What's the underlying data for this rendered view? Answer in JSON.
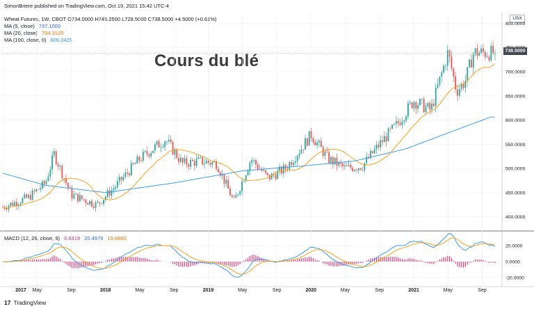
{
  "header": {
    "publish_line": "SimonBriere published on TradingView.com, Oct 19, 2021 15:42 UTC-4",
    "symbol_line": "Wheat Futures, 1W, CBOT  O734.0000  H745.2500  L728.5000  C738.5000  +4.5000 (+0.61%)",
    "currency_badge": "USX"
  },
  "moving_averages": [
    {
      "label": "MA (5, close)",
      "value": "737.1000",
      "color": "#2962ff"
    },
    {
      "label": "MA (20, close)",
      "value": "704.3125",
      "color": "#ff6d00"
    },
    {
      "label": "MA (100, close, 0)",
      "value": "606.2425",
      "color": "#2196f3"
    }
  ],
  "overlay_title": "Cours du blé",
  "last_price_label": "738.5000",
  "macd": {
    "label": "MACD (12, 26, close, 9)",
    "values": [
      {
        "text": "0.6319",
        "color": "#e91e63"
      },
      {
        "text": "20.4979",
        "color": "#2962ff"
      },
      {
        "text": "19.8660",
        "color": "#ff6d00"
      }
    ]
  },
  "footer": {
    "brand_mark": "17",
    "brand_name": "TradingView"
  },
  "colors": {
    "up_candle": "#26a69a",
    "down_candle": "#ef5350",
    "ma100": "#2196f3",
    "ma20": "#ff9800",
    "macd_line": "#2196f3",
    "signal_line": "#ff9800",
    "histogram": "#e91e63",
    "grid": "#eceff1"
  },
  "chart_data": [
    {
      "type": "candlestick",
      "title": "Wheat Futures, 1W, CBOT",
      "x_ticks": [
        "2017",
        "May",
        "Sep",
        "2018",
        "May",
        "Sep",
        "2019",
        "May",
        "Sep",
        "2020",
        "May",
        "Sep",
        "2021",
        "May",
        "Sep"
      ],
      "y_ticks": [
        "400.0000",
        "450.0000",
        "500.0000",
        "550.0000",
        "600.0000",
        "650.0000",
        "700.0000",
        "750.0000",
        "800.0000"
      ],
      "ylim": [
        385,
        805
      ],
      "grid": true,
      "approx_close_path": [
        {
          "date": "2017-01",
          "value": 420
        },
        {
          "date": "2017-04",
          "value": 440
        },
        {
          "date": "2017-06",
          "value": 470
        },
        {
          "date": "2017-07",
          "value": 530
        },
        {
          "date": "2017-09",
          "value": 445
        },
        {
          "date": "2017-12",
          "value": 425
        },
        {
          "date": "2018-02",
          "value": 460
        },
        {
          "date": "2018-05",
          "value": 520
        },
        {
          "date": "2018-08",
          "value": 560
        },
        {
          "date": "2018-10",
          "value": 510
        },
        {
          "date": "2018-12",
          "value": 515
        },
        {
          "date": "2019-02",
          "value": 510
        },
        {
          "date": "2019-04",
          "value": 430
        },
        {
          "date": "2019-06",
          "value": 520
        },
        {
          "date": "2019-08",
          "value": 480
        },
        {
          "date": "2019-10",
          "value": 500
        },
        {
          "date": "2019-12",
          "value": 545
        },
        {
          "date": "2020-01",
          "value": 570
        },
        {
          "date": "2020-03",
          "value": 520
        },
        {
          "date": "2020-05",
          "value": 500
        },
        {
          "date": "2020-07",
          "value": 505
        },
        {
          "date": "2020-09",
          "value": 550
        },
        {
          "date": "2020-11",
          "value": 590
        },
        {
          "date": "2021-01",
          "value": 640
        },
        {
          "date": "2021-03",
          "value": 620
        },
        {
          "date": "2021-05",
          "value": 740
        },
        {
          "date": "2021-06",
          "value": 660
        },
        {
          "date": "2021-07",
          "value": 680
        },
        {
          "date": "2021-08",
          "value": 740
        },
        {
          "date": "2021-10",
          "value": 738.5
        }
      ],
      "series": [
        {
          "name": "MA (20, close)",
          "last": 704.3125
        },
        {
          "name": "MA (100, close, 0)",
          "last": 606.2425,
          "approx_values": [
            {
              "date": "2017-01",
              "value": 490
            },
            {
              "date": "2017-06",
              "value": 465
            },
            {
              "date": "2018-01",
              "value": 450
            },
            {
              "date": "2018-09",
              "value": 470
            },
            {
              "date": "2019-05",
              "value": 495
            },
            {
              "date": "2019-12",
              "value": 505
            },
            {
              "date": "2020-06",
              "value": 515
            },
            {
              "date": "2020-12",
              "value": 540
            },
            {
              "date": "2021-06",
              "value": 580
            },
            {
              "date": "2021-10",
              "value": 606.2425
            }
          ]
        }
      ]
    },
    {
      "type": "line",
      "title": "MACD (12, 26, close, 9)",
      "y_ticks": [
        "20.0000",
        "0.0000",
        "-20.0000"
      ],
      "ylim": [
        -28,
        35
      ],
      "series": [
        {
          "name": "MACD",
          "last": 20.4979
        },
        {
          "name": "Signal",
          "last": 19.866
        },
        {
          "name": "Histogram",
          "last": 0.6319
        }
      ]
    }
  ]
}
